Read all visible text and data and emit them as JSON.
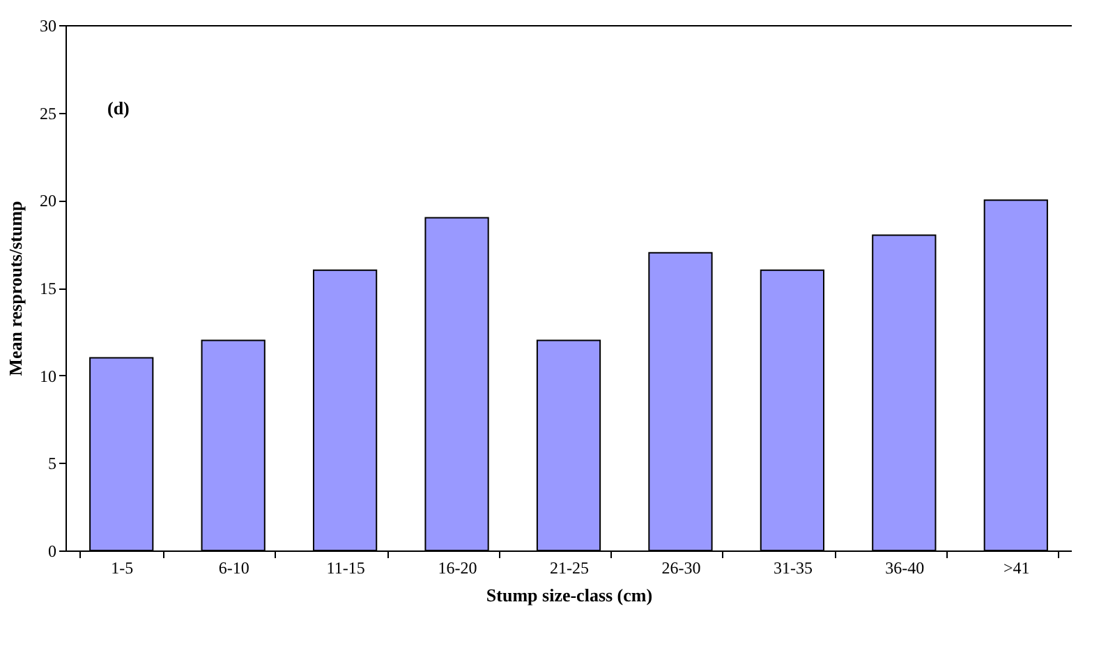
{
  "chart_data": {
    "type": "bar",
    "xlabel": "Stump size-class (cm)",
    "ylabel": "Mean resprouts/stump",
    "categories": [
      "1-5",
      "6-10",
      "11-15",
      "16-20",
      "21-25",
      "26-30",
      "31-35",
      "36-40",
      ">41"
    ],
    "values": [
      11,
      12,
      16,
      19,
      12,
      17,
      16,
      18,
      20
    ],
    "color": "#9999ff",
    "ylim": [
      0,
      30
    ],
    "yticks": [
      0,
      5,
      10,
      15,
      20,
      25,
      30
    ],
    "grid": false,
    "annotations": [
      "(d)"
    ]
  }
}
